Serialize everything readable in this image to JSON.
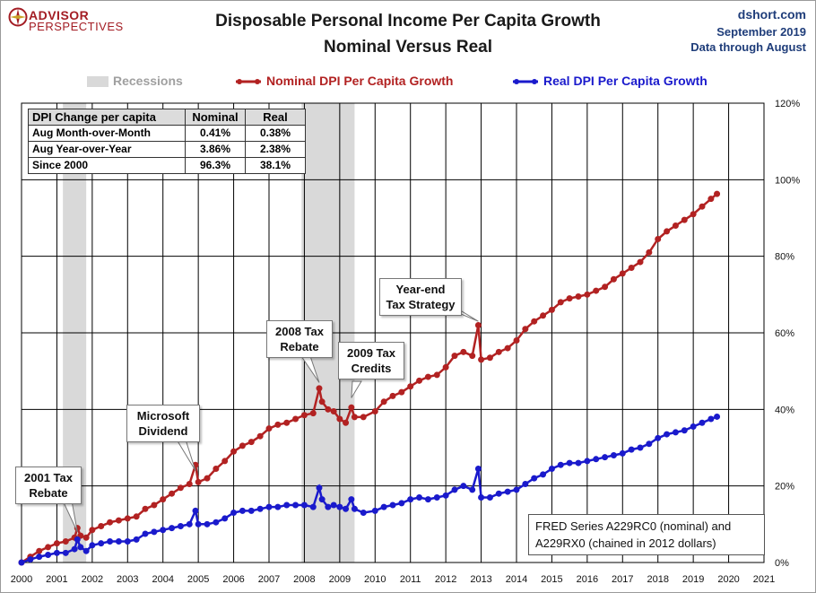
{
  "header": {
    "logo_line1": "ADVISOR",
    "logo_line2": "PERSPECTIVES",
    "title_line1": "Disposable Personal Income Per Capita Growth",
    "title_line2": "Nominal Versus Real",
    "source_site": "dshort.com",
    "source_date": "September 2019",
    "source_note": "Data through August"
  },
  "legend": {
    "recessions": "Recessions",
    "nominal": "Nominal DPI Per Capita Growth",
    "real": "Real DPI Per Capita Growth"
  },
  "table": {
    "headers": [
      "DPI Change per capita",
      "Nominal",
      "Real"
    ],
    "rows": [
      [
        "Aug Month-over-Month",
        "0.41%",
        "0.38%"
      ],
      [
        "Aug Year-over-Year",
        "3.86%",
        "2.38%"
      ],
      [
        "Since 2000",
        "96.3%",
        "38.1%"
      ]
    ]
  },
  "callouts": {
    "tax2001": [
      "2001 Tax",
      "Rebate"
    ],
    "microsoft": [
      "Microsoft",
      "Dividend"
    ],
    "tax2008": [
      "2008 Tax",
      "Rebate"
    ],
    "tax2009": [
      "2009 Tax",
      "Credits"
    ],
    "yearend": [
      "Year-end",
      "Tax Strategy"
    ]
  },
  "footnote": [
    "FRED Series A229RC0 (nominal) and",
    "A229RX0 (chained in 2012 dollars)"
  ],
  "colors": {
    "nominal": "#b22222",
    "real": "#1a1acc",
    "recession": "#d9d9d9",
    "grid": "#000000"
  },
  "chart_data": {
    "type": "line",
    "title": "Disposable Personal Income Per Capita Growth",
    "subtitle": "Nominal Versus Real",
    "x_ticks": [
      "2000",
      "2001",
      "2002",
      "2003",
      "2004",
      "2005",
      "2006",
      "2007",
      "2008",
      "2009",
      "2010",
      "2011",
      "2012",
      "2013",
      "2014",
      "2015",
      "2016",
      "2017",
      "2018",
      "2019",
      "2020",
      "2021"
    ],
    "y_ticks": [
      "0%",
      "20%",
      "40%",
      "60%",
      "80%",
      "100%",
      "120%"
    ],
    "xlim": [
      2000,
      2021
    ],
    "ylim": [
      0,
      120
    ],
    "recessions": [
      [
        2001.17,
        2001.83
      ],
      [
        2007.92,
        2009.42
      ]
    ],
    "series": [
      {
        "name": "Nominal DPI Per Capita Growth",
        "points": [
          [
            2000.0,
            0
          ],
          [
            2000.25,
            1.5
          ],
          [
            2000.5,
            3
          ],
          [
            2000.75,
            4
          ],
          [
            2001.0,
            5
          ],
          [
            2001.25,
            5.5
          ],
          [
            2001.5,
            6.5
          ],
          [
            2001.58,
            9
          ],
          [
            2001.67,
            7
          ],
          [
            2001.83,
            6.5
          ],
          [
            2002.0,
            8.5
          ],
          [
            2002.25,
            9.5
          ],
          [
            2002.5,
            10.5
          ],
          [
            2002.75,
            11
          ],
          [
            2003.0,
            11.5
          ],
          [
            2003.25,
            12
          ],
          [
            2003.5,
            14
          ],
          [
            2003.75,
            15
          ],
          [
            2004.0,
            16.5
          ],
          [
            2004.25,
            18
          ],
          [
            2004.5,
            19.5
          ],
          [
            2004.75,
            20.5
          ],
          [
            2004.92,
            25.5
          ],
          [
            2005.0,
            21
          ],
          [
            2005.25,
            22
          ],
          [
            2005.5,
            24.5
          ],
          [
            2005.75,
            26.5
          ],
          [
            2006.0,
            29
          ],
          [
            2006.25,
            30.5
          ],
          [
            2006.5,
            31.5
          ],
          [
            2006.75,
            33
          ],
          [
            2007.0,
            35
          ],
          [
            2007.25,
            36
          ],
          [
            2007.5,
            36.5
          ],
          [
            2007.75,
            37.5
          ],
          [
            2008.0,
            38.5
          ],
          [
            2008.25,
            39
          ],
          [
            2008.42,
            45.5
          ],
          [
            2008.5,
            42
          ],
          [
            2008.67,
            40
          ],
          [
            2008.83,
            39.5
          ],
          [
            2009.0,
            37.5
          ],
          [
            2009.17,
            36.5
          ],
          [
            2009.33,
            40.5
          ],
          [
            2009.42,
            38
          ],
          [
            2009.67,
            38
          ],
          [
            2010.0,
            39.5
          ],
          [
            2010.25,
            42
          ],
          [
            2010.5,
            43.5
          ],
          [
            2010.75,
            44.5
          ],
          [
            2011.0,
            46
          ],
          [
            2011.25,
            47.5
          ],
          [
            2011.5,
            48.5
          ],
          [
            2011.75,
            49
          ],
          [
            2012.0,
            51
          ],
          [
            2012.25,
            54
          ],
          [
            2012.5,
            55
          ],
          [
            2012.75,
            54
          ],
          [
            2012.92,
            62
          ],
          [
            2013.0,
            53
          ],
          [
            2013.25,
            53.5
          ],
          [
            2013.5,
            55
          ],
          [
            2013.75,
            56
          ],
          [
            2014.0,
            58
          ],
          [
            2014.25,
            61
          ],
          [
            2014.5,
            63
          ],
          [
            2014.75,
            64.5
          ],
          [
            2015.0,
            66
          ],
          [
            2015.25,
            68
          ],
          [
            2015.5,
            69
          ],
          [
            2015.75,
            69.5
          ],
          [
            2016.0,
            70
          ],
          [
            2016.25,
            71
          ],
          [
            2016.5,
            72
          ],
          [
            2016.75,
            74
          ],
          [
            2017.0,
            75.5
          ],
          [
            2017.25,
            77
          ],
          [
            2017.5,
            78.5
          ],
          [
            2017.75,
            81
          ],
          [
            2018.0,
            84.5
          ],
          [
            2018.25,
            86.5
          ],
          [
            2018.5,
            88
          ],
          [
            2018.75,
            89.5
          ],
          [
            2019.0,
            91
          ],
          [
            2019.25,
            93
          ],
          [
            2019.5,
            95
          ],
          [
            2019.67,
            96.3
          ]
        ]
      },
      {
        "name": "Real DPI Per Capita Growth",
        "points": [
          [
            2000.0,
            0
          ],
          [
            2000.25,
            0.8
          ],
          [
            2000.5,
            1.5
          ],
          [
            2000.75,
            2
          ],
          [
            2001.0,
            2.5
          ],
          [
            2001.25,
            2.5
          ],
          [
            2001.5,
            3.5
          ],
          [
            2001.58,
            6
          ],
          [
            2001.67,
            4
          ],
          [
            2001.83,
            3
          ],
          [
            2002.0,
            4.5
          ],
          [
            2002.25,
            5
          ],
          [
            2002.5,
            5.5
          ],
          [
            2002.75,
            5.5
          ],
          [
            2003.0,
            5.5
          ],
          [
            2003.25,
            6
          ],
          [
            2003.5,
            7.5
          ],
          [
            2003.75,
            8
          ],
          [
            2004.0,
            8.5
          ],
          [
            2004.25,
            9
          ],
          [
            2004.5,
            9.5
          ],
          [
            2004.75,
            10
          ],
          [
            2004.92,
            13.5
          ],
          [
            2005.0,
            10
          ],
          [
            2005.25,
            10
          ],
          [
            2005.5,
            10.5
          ],
          [
            2005.75,
            11.5
          ],
          [
            2006.0,
            13
          ],
          [
            2006.25,
            13.5
          ],
          [
            2006.5,
            13.5
          ],
          [
            2006.75,
            14
          ],
          [
            2007.0,
            14.5
          ],
          [
            2007.25,
            14.5
          ],
          [
            2007.5,
            15
          ],
          [
            2007.75,
            15
          ],
          [
            2008.0,
            15
          ],
          [
            2008.25,
            14.5
          ],
          [
            2008.42,
            19.5
          ],
          [
            2008.5,
            16.5
          ],
          [
            2008.67,
            14.5
          ],
          [
            2008.83,
            15
          ],
          [
            2009.0,
            14.5
          ],
          [
            2009.17,
            14
          ],
          [
            2009.33,
            16.5
          ],
          [
            2009.42,
            14
          ],
          [
            2009.67,
            13
          ],
          [
            2010.0,
            13.5
          ],
          [
            2010.25,
            14.5
          ],
          [
            2010.5,
            15
          ],
          [
            2010.75,
            15.5
          ],
          [
            2011.0,
            16.5
          ],
          [
            2011.25,
            17
          ],
          [
            2011.5,
            16.5
          ],
          [
            2011.75,
            17
          ],
          [
            2012.0,
            17.5
          ],
          [
            2012.25,
            19
          ],
          [
            2012.5,
            20
          ],
          [
            2012.75,
            19
          ],
          [
            2012.92,
            24.5
          ],
          [
            2013.0,
            17
          ],
          [
            2013.25,
            17
          ],
          [
            2013.5,
            18
          ],
          [
            2013.75,
            18.5
          ],
          [
            2014.0,
            19
          ],
          [
            2014.25,
            20.5
          ],
          [
            2014.5,
            22
          ],
          [
            2014.75,
            23
          ],
          [
            2015.0,
            24.5
          ],
          [
            2015.25,
            25.5
          ],
          [
            2015.5,
            26
          ],
          [
            2015.75,
            26
          ],
          [
            2016.0,
            26.5
          ],
          [
            2016.25,
            27
          ],
          [
            2016.5,
            27.5
          ],
          [
            2016.75,
            28
          ],
          [
            2017.0,
            28.5
          ],
          [
            2017.25,
            29.5
          ],
          [
            2017.5,
            30
          ],
          [
            2017.75,
            31
          ],
          [
            2018.0,
            32.5
          ],
          [
            2018.25,
            33.5
          ],
          [
            2018.5,
            34
          ],
          [
            2018.75,
            34.5
          ],
          [
            2019.0,
            35.5
          ],
          [
            2019.25,
            36.5
          ],
          [
            2019.5,
            37.5
          ],
          [
            2019.67,
            38.1
          ]
        ]
      }
    ]
  }
}
